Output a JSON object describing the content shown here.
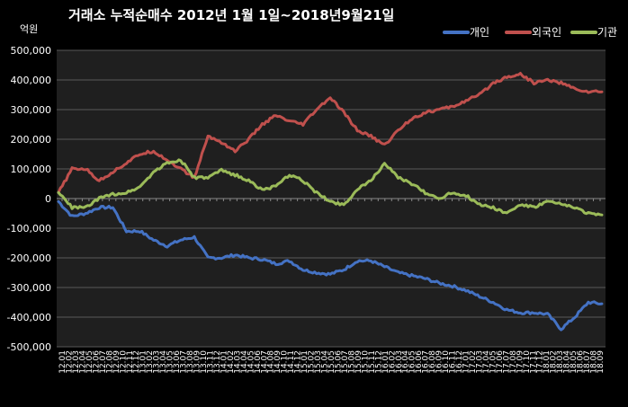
{
  "colors": {
    "background": "#000000",
    "plot_background": "#1f1f1f",
    "gridline": "#595959",
    "text": "#ffffff",
    "individual": "#4472c4",
    "foreign": "#c0504d",
    "institution": "#9bbb59"
  },
  "chart_data": {
    "type": "line",
    "title": "거래소 누적순매수 2012년 1월 1일~2018년9월21일",
    "ylabel": "억원",
    "ylim": [
      -500000,
      500000
    ],
    "yticks": [
      500000,
      400000,
      300000,
      200000,
      100000,
      0,
      -100000,
      -200000,
      -300000,
      -400000,
      -500000
    ],
    "ytick_labels": [
      "500,000",
      "400,000",
      "300,000",
      "200,000",
      "100,000",
      "0",
      "-100,000",
      "-200,000",
      "-300,000",
      "-400,000",
      "-500,000"
    ],
    "grid": true,
    "legend": "top-right",
    "x": [
      "12.01",
      "12.03",
      "12.05",
      "12.07",
      "12.09",
      "12.11",
      "13.01",
      "13.03",
      "13.05",
      "13.07",
      "13.09",
      "13.11",
      "14.01",
      "14.03",
      "14.05",
      "14.07",
      "14.09",
      "14.11",
      "15.01",
      "15.03",
      "15.05",
      "15.07",
      "15.09",
      "15.11",
      "16.01",
      "16.03",
      "16.05",
      "16.07",
      "16.09",
      "16.11",
      "17.01",
      "17.03",
      "17.05",
      "17.07",
      "17.09",
      "17.11",
      "18.01",
      "18.03",
      "18.05",
      "18.07",
      "18.09"
    ],
    "xtick_labels": [
      "12.01",
      "12.02",
      "12.03",
      "12.04",
      "12.05",
      "12.06",
      "12.07",
      "12.08",
      "12.09",
      "12.10",
      "12.11",
      "12.12",
      "13.01",
      "13.02",
      "13.03",
      "13.04",
      "13.05",
      "13.06",
      "13.07",
      "13.08",
      "13.09",
      "13.10",
      "13.11",
      "13.12",
      "14.01",
      "14.02",
      "14.03",
      "14.04",
      "14.05",
      "14.06",
      "14.07",
      "14.08",
      "14.09",
      "14.10",
      "14.11",
      "14.12",
      "15.01",
      "15.02",
      "15.03",
      "15.04",
      "15.05",
      "15.06",
      "15.07",
      "15.08",
      "15.09",
      "15.10",
      "15.11",
      "15.12",
      "16.01",
      "16.02",
      "16.03",
      "16.04",
      "16.05",
      "16.06",
      "16.07",
      "16.08",
      "16.09",
      "16.10",
      "16.11",
      "16.12",
      "17.01",
      "17.02",
      "17.03",
      "17.04",
      "17.05",
      "17.06",
      "17.07",
      "17.08",
      "17.09",
      "17.10",
      "17.11",
      "17.12",
      "18.01",
      "18.02",
      "18.03",
      "18.04",
      "18.05",
      "18.06",
      "18.07",
      "18.08",
      "18.09"
    ],
    "series": [
      {
        "name": "개인",
        "color": "#4472c4",
        "values": [
          -10000,
          -60000,
          -50000,
          -30000,
          -30000,
          -110000,
          -110000,
          -140000,
          -160000,
          -140000,
          -130000,
          -200000,
          -200000,
          -190000,
          -200000,
          -205000,
          -220000,
          -210000,
          -240000,
          -250000,
          -255000,
          -240000,
          -210000,
          -210000,
          -230000,
          -250000,
          -260000,
          -270000,
          -285000,
          -295000,
          -310000,
          -330000,
          -350000,
          -375000,
          -385000,
          -385000,
          -390000,
          -440000,
          -400000,
          -350000,
          -355000
        ]
      },
      {
        "name": "외국인",
        "color": "#c0504d",
        "values": [
          20000,
          100000,
          100000,
          60000,
          90000,
          120000,
          150000,
          160000,
          130000,
          100000,
          70000,
          210000,
          190000,
          160000,
          200000,
          250000,
          280000,
          260000,
          250000,
          300000,
          340000,
          290000,
          230000,
          210000,
          180000,
          230000,
          270000,
          290000,
          300000,
          310000,
          330000,
          350000,
          390000,
          410000,
          420000,
          390000,
          400000,
          390000,
          370000,
          360000,
          360000
        ]
      },
      {
        "name": "기관",
        "color": "#9bbb59",
        "values": [
          20000,
          -30000,
          -30000,
          0,
          15000,
          20000,
          40000,
          90000,
          120000,
          130000,
          70000,
          70000,
          95000,
          80000,
          60000,
          30000,
          40000,
          80000,
          60000,
          20000,
          -10000,
          -20000,
          30000,
          60000,
          120000,
          70000,
          50000,
          20000,
          0,
          20000,
          10000,
          -20000,
          -30000,
          -50000,
          -20000,
          -30000,
          -10000,
          -20000,
          -30000,
          -50000,
          -55000
        ]
      }
    ]
  }
}
